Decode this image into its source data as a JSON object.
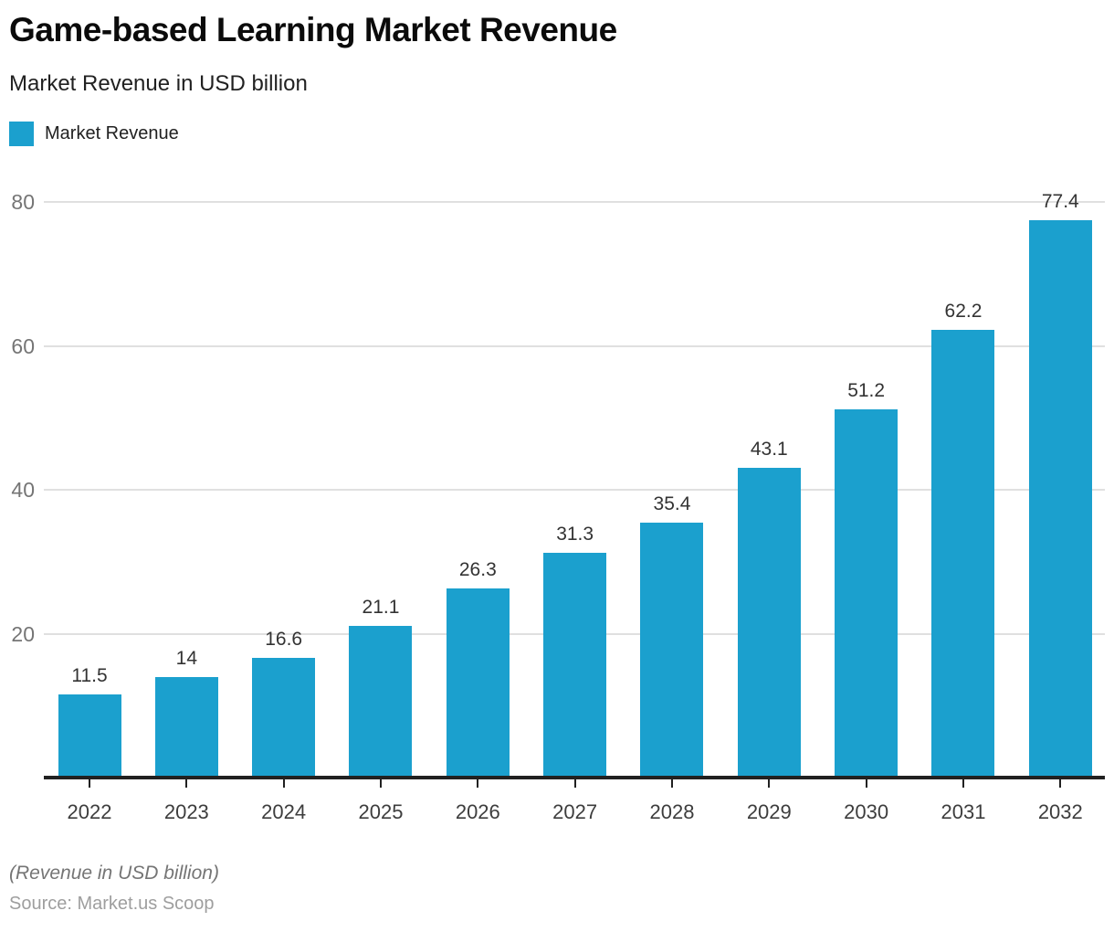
{
  "chart": {
    "title": "Game-based Learning Market Revenue",
    "subtitle": "Market Revenue in USD billion",
    "legend": {
      "label": "Market Revenue"
    },
    "footer_note": "(Revenue in USD billion)",
    "source": "Source: Market.us Scoop"
  },
  "chart_data": {
    "type": "bar",
    "title": "Game-based Learning Market Revenue",
    "subtitle": "Market Revenue in USD billion",
    "series_name": "Market Revenue",
    "categories": [
      "2022",
      "2023",
      "2024",
      "2025",
      "2026",
      "2027",
      "2028",
      "2029",
      "2030",
      "2031",
      "2032"
    ],
    "values": [
      11.5,
      14,
      16.6,
      21.1,
      26.3,
      31.3,
      35.4,
      43.1,
      51.2,
      62.2,
      77.4
    ],
    "value_labels": [
      "11.5",
      "14",
      "16.6",
      "21.1",
      "26.3",
      "31.3",
      "35.4",
      "43.1",
      "51.2",
      "62.2",
      "77.4"
    ],
    "ylim": [
      0,
      80
    ],
    "yticks": [
      20,
      40,
      60,
      80
    ],
    "grid": true,
    "legend_position": "top-left",
    "bar_color": "#1BA0CE",
    "gridline_color": "#e0e0e0",
    "axis_color": "#212121",
    "xlabel": "",
    "ylabel": ""
  }
}
